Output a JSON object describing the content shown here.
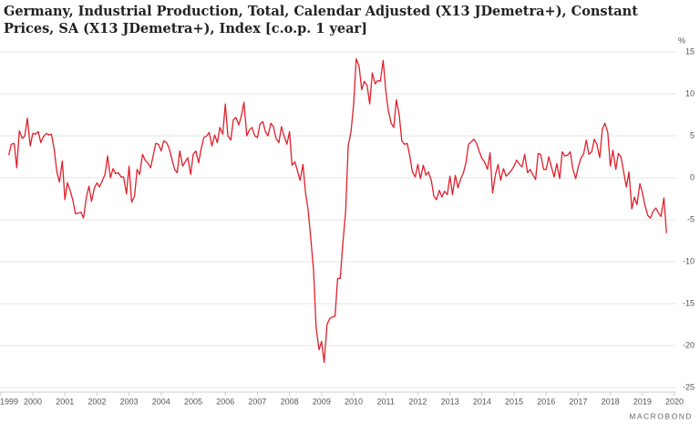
{
  "chart_data": {
    "type": "line",
    "title": "Germany, Industrial Production, Total, Calendar Adjusted (X13 JDemetra+), Constant Prices, SA (X13 JDemetra+), Index [c.o.p. 1 year]",
    "y_unit_label": "%",
    "watermark": "MACROBOND",
    "xlim": [
      1999,
      2020.05
    ],
    "xticks": [
      1999,
      2000,
      2001,
      2002,
      2003,
      2004,
      2005,
      2006,
      2007,
      2008,
      2009,
      2010,
      2011,
      2012,
      2013,
      2014,
      2015,
      2016,
      2017,
      2018,
      2019,
      2020
    ],
    "ylim": [
      -25,
      15
    ],
    "yticks": [
      15,
      10,
      5,
      0,
      -5,
      -10,
      -15,
      -20,
      -25
    ],
    "grid": true,
    "x": [
      1999.25,
      1999.33,
      1999.42,
      1999.5,
      1999.58,
      1999.67,
      1999.75,
      1999.83,
      1999.92,
      2000.0,
      2000.08,
      2000.17,
      2000.25,
      2000.33,
      2000.42,
      2000.5,
      2000.58,
      2000.67,
      2000.75,
      2000.83,
      2000.92,
      2001.0,
      2001.08,
      2001.17,
      2001.25,
      2001.33,
      2001.42,
      2001.5,
      2001.58,
      2001.67,
      2001.75,
      2001.83,
      2001.92,
      2002.0,
      2002.08,
      2002.17,
      2002.25,
      2002.33,
      2002.42,
      2002.5,
      2002.58,
      2002.67,
      2002.75,
      2002.83,
      2002.92,
      2003.0,
      2003.08,
      2003.17,
      2003.25,
      2003.33,
      2003.42,
      2003.5,
      2003.58,
      2003.67,
      2003.75,
      2003.83,
      2003.92,
      2004.0,
      2004.08,
      2004.17,
      2004.25,
      2004.33,
      2004.42,
      2004.5,
      2004.58,
      2004.67,
      2004.75,
      2004.83,
      2004.92,
      2005.0,
      2005.08,
      2005.17,
      2005.25,
      2005.33,
      2005.42,
      2005.5,
      2005.58,
      2005.67,
      2005.75,
      2005.83,
      2005.92,
      2006.0,
      2006.08,
      2006.17,
      2006.25,
      2006.33,
      2006.42,
      2006.5,
      2006.58,
      2006.67,
      2006.75,
      2006.83,
      2006.92,
      2007.0,
      2007.08,
      2007.17,
      2007.25,
      2007.33,
      2007.42,
      2007.5,
      2007.58,
      2007.67,
      2007.75,
      2007.83,
      2007.92,
      2008.0,
      2008.08,
      2008.17,
      2008.25,
      2008.33,
      2008.42,
      2008.5,
      2008.58,
      2008.67,
      2008.75,
      2008.83,
      2008.92,
      2009.0,
      2009.08,
      2009.17,
      2009.25,
      2009.33,
      2009.42,
      2009.5,
      2009.58,
      2009.67,
      2009.75,
      2009.83,
      2009.92,
      2010.0,
      2010.08,
      2010.17,
      2010.25,
      2010.33,
      2010.42,
      2010.5,
      2010.58,
      2010.67,
      2010.75,
      2010.83,
      2010.92,
      2011.0,
      2011.08,
      2011.17,
      2011.25,
      2011.33,
      2011.42,
      2011.5,
      2011.58,
      2011.67,
      2011.75,
      2011.83,
      2011.92,
      2012.0,
      2012.08,
      2012.17,
      2012.25,
      2012.33,
      2012.42,
      2012.5,
      2012.58,
      2012.67,
      2012.75,
      2012.83,
      2012.92,
      2013.0,
      2013.08,
      2013.17,
      2013.25,
      2013.33,
      2013.42,
      2013.5,
      2013.58,
      2013.67,
      2013.75,
      2013.83,
      2013.92,
      2014.0,
      2014.08,
      2014.17,
      2014.25,
      2014.33,
      2014.42,
      2014.5,
      2014.58,
      2014.67,
      2014.75,
      2014.83,
      2014.92,
      2015.0,
      2015.08,
      2015.17,
      2015.25,
      2015.33,
      2015.42,
      2015.5,
      2015.58,
      2015.67,
      2015.75,
      2015.83,
      2015.92,
      2016.0,
      2016.08,
      2016.17,
      2016.25,
      2016.33,
      2016.42,
      2016.5,
      2016.58,
      2016.67,
      2016.75,
      2016.83,
      2016.92,
      2017.0,
      2017.08,
      2017.17,
      2017.25,
      2017.33,
      2017.42,
      2017.5,
      2017.58,
      2017.67,
      2017.75,
      2017.83,
      2017.92,
      2018.0,
      2018.08,
      2018.17,
      2018.25,
      2018.33,
      2018.42,
      2018.5,
      2018.58,
      2018.67,
      2018.75,
      2018.83,
      2018.92,
      2019.0,
      2019.08,
      2019.17,
      2019.25,
      2019.33,
      2019.42,
      2019.5,
      2019.58,
      2019.67,
      2019.75
    ],
    "series": [
      {
        "color": "#e0202c",
        "values": [
          2.7,
          4.0,
          4.1,
          1.2,
          5.6,
          4.7,
          5.0,
          7.1,
          3.8,
          5.3,
          5.2,
          5.5,
          4.2,
          4.9,
          5.3,
          5.1,
          5.2,
          3.3,
          0.7,
          -0.5,
          2.0,
          -2.6,
          -0.6,
          -1.6,
          -2.7,
          -4.3,
          -4.2,
          -4.1,
          -4.8,
          -2.3,
          -1.0,
          -2.8,
          -1.2,
          -0.6,
          -1.1,
          -0.3,
          0.4,
          2.6,
          0.0,
          1.1,
          0.5,
          0.6,
          0.1,
          0.1,
          -1.9,
          1.4,
          -2.9,
          -2.2,
          1.0,
          0.4,
          2.8,
          2.1,
          1.8,
          1.2,
          2.6,
          4.1,
          4.0,
          3.2,
          4.4,
          4.2,
          3.5,
          2.3,
          1.0,
          0.6,
          3.2,
          1.4,
          1.9,
          2.4,
          0.4,
          2.8,
          3.2,
          1.8,
          3.5,
          4.8,
          5.0,
          5.4,
          3.8,
          5.1,
          4.2,
          6.0,
          5.2,
          8.8,
          5.0,
          4.5,
          6.9,
          7.2,
          6.3,
          7.4,
          9.0,
          5.0,
          5.7,
          6.0,
          5.0,
          4.8,
          6.4,
          6.7,
          5.5,
          5.0,
          6.5,
          6.1,
          4.7,
          4.2,
          6.1,
          5.0,
          4.0,
          5.5,
          1.5,
          1.9,
          0.8,
          -0.3,
          1.6,
          -1.8,
          -3.8,
          -7.5,
          -11,
          -17.8,
          -20.5,
          -19.5,
          -22,
          -17.5,
          -16.8,
          -16.6,
          -16.5,
          -12,
          -12,
          -7.5,
          -4.0,
          3.8,
          5.6,
          8.8,
          14.2,
          13.3,
          10.5,
          11.5,
          11.0,
          8.8,
          12.5,
          11.2,
          11.6,
          11.5,
          14.0,
          10.4,
          8.0,
          6.5,
          6.0,
          9.3,
          7.5,
          4.4,
          4.0,
          4.1,
          2.6,
          0.7,
          0.1,
          1.6,
          -0.1,
          1.5,
          0.3,
          0.7,
          -0.3,
          -2.2,
          -2.6,
          -1.5,
          -2.3,
          -1.6,
          -2.0,
          0.2,
          -2.0,
          0.3,
          -1.2,
          -0.2,
          0.6,
          1.8,
          4.0,
          4.3,
          4.6,
          4.1,
          3.1,
          2.3,
          1.9,
          1.0,
          3.0,
          -1.8,
          0.4,
          1.6,
          -0.3,
          1.1,
          0.2,
          0.5,
          0.9,
          1.4,
          2.1,
          1.6,
          1.3,
          2.8,
          0.6,
          1.0,
          0.4,
          -0.2,
          2.9,
          2.8,
          1.0,
          1.0,
          2.5,
          1.2,
          0.1,
          1.7,
          -0.1,
          3.1,
          2.6,
          2.7,
          3.1,
          1.1,
          -0.1,
          1.3,
          2.3,
          2.9,
          4.5,
          2.8,
          3.1,
          4.6,
          4.0,
          2.4,
          5.8,
          6.5,
          5.4,
          1.4,
          3.3,
          1.0,
          2.9,
          2.5,
          0.6,
          -1.1,
          0.7,
          -3.7,
          -2.3,
          -3.2,
          -0.7,
          -1.8,
          -3.3,
          -4.5,
          -4.8,
          -4.0,
          -3.6,
          -4.2,
          -4.6,
          -2.4,
          -6.6
        ]
      }
    ]
  }
}
